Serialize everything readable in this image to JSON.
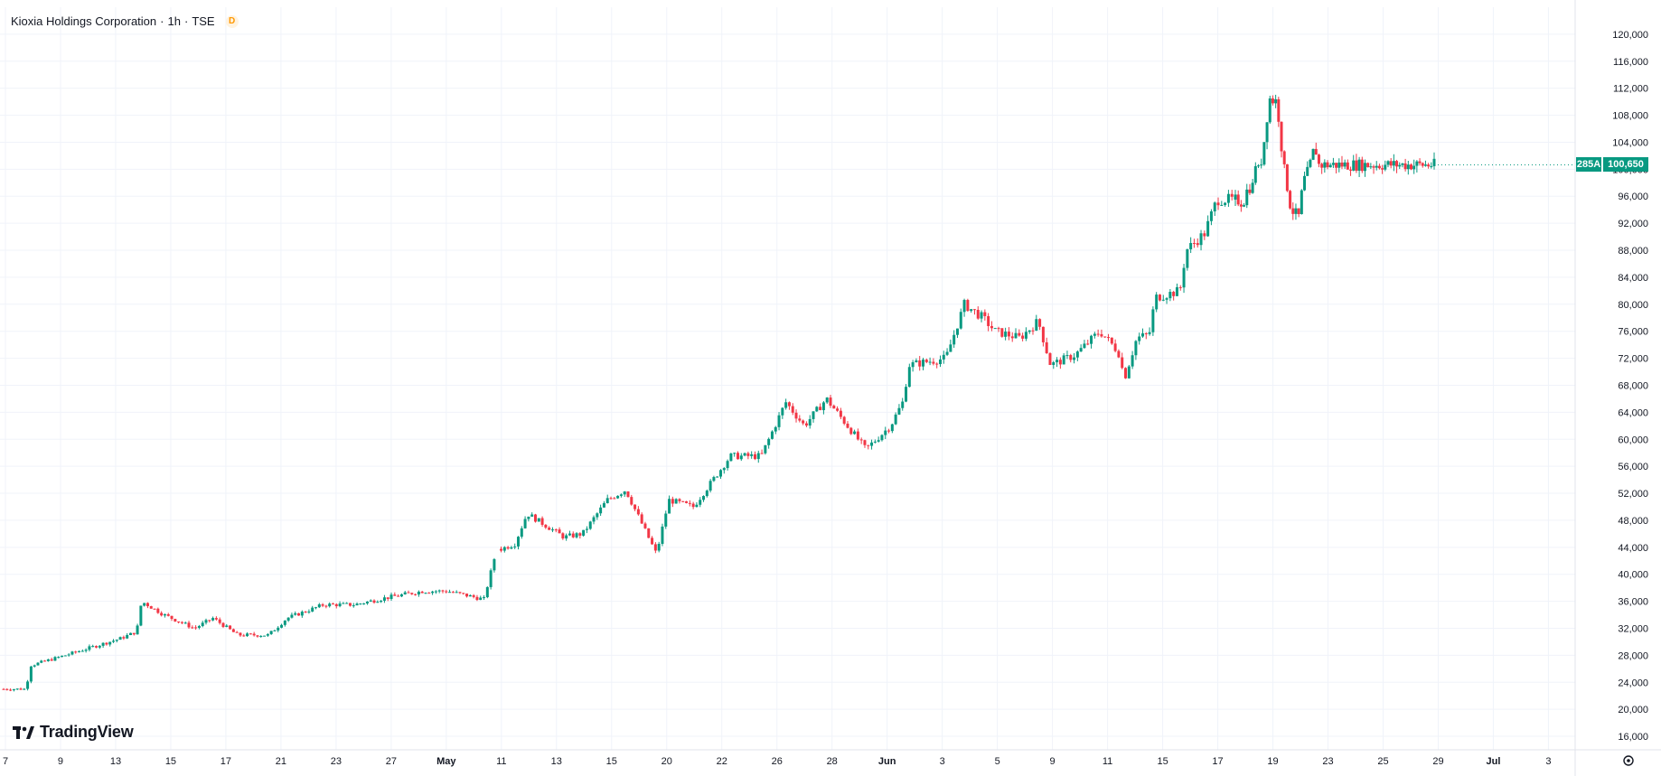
{
  "header": {
    "symbol_name": "Kioxia Holdings Corporation",
    "interval": "1h",
    "exchange": "TSE",
    "sep1": "·",
    "sep2": "·",
    "badge": "D"
  },
  "brand": {
    "name": "TradingView"
  },
  "last_price": {
    "ticker": "285A",
    "value": "100,650"
  },
  "colors": {
    "up": "#089981",
    "down": "#f23645",
    "grid": "#f0f3fa",
    "text": "#131722"
  },
  "chart_data": {
    "type": "candlestick",
    "title": "Kioxia Holdings Corporation · 1h · TSE",
    "ylim": [
      14000,
      124000
    ],
    "y_ticks": [
      "16,000",
      "20,000",
      "24,000",
      "28,000",
      "32,000",
      "36,000",
      "40,000",
      "44,000",
      "48,000",
      "52,000",
      "56,000",
      "60,000",
      "64,000",
      "68,000",
      "72,000",
      "76,000",
      "80,000",
      "84,000",
      "88,000",
      "92,000",
      "96,000",
      "100,000",
      "104,000",
      "108,000",
      "112,000",
      "116,000",
      "120,000"
    ],
    "x_ticks": [
      "7",
      "9",
      "13",
      "15",
      "17",
      "21",
      "23",
      "27",
      "May",
      "11",
      "13",
      "15",
      "20",
      "22",
      "26",
      "28",
      "Jun",
      "3",
      "5",
      "9",
      "11",
      "15",
      "17",
      "19",
      "23",
      "25",
      "29",
      "Jul",
      "3"
    ],
    "x_ticks_bold": [
      "May",
      "Jun",
      "Jul"
    ],
    "grid": true,
    "approx_path": [
      {
        "x": 0,
        "price": 23000
      },
      {
        "x": 0.018,
        "price": 23000
      },
      {
        "x": 0.022,
        "price": 26500
      },
      {
        "x": 0.05,
        "price": 28000
      },
      {
        "x": 0.095,
        "price": 30500
      },
      {
        "x": 0.108,
        "price": 31500
      },
      {
        "x": 0.112,
        "price": 36000
      },
      {
        "x": 0.13,
        "price": 34000
      },
      {
        "x": 0.155,
        "price": 32000
      },
      {
        "x": 0.17,
        "price": 33500
      },
      {
        "x": 0.19,
        "price": 31000
      },
      {
        "x": 0.215,
        "price": 31000
      },
      {
        "x": 0.23,
        "price": 33500
      },
      {
        "x": 0.26,
        "price": 35500
      },
      {
        "x": 0.285,
        "price": 35500
      },
      {
        "x": 0.31,
        "price": 36500
      },
      {
        "x": 0.34,
        "price": 37500
      },
      {
        "x": 0.36,
        "price": 37500
      },
      {
        "x": 0.39,
        "price": 36300
      },
      {
        "x": 0.4,
        "price": 43500
      },
      {
        "x": 0.415,
        "price": 44500
      },
      {
        "x": 0.425,
        "price": 49000
      },
      {
        "x": 0.455,
        "price": 45500
      },
      {
        "x": 0.47,
        "price": 46000
      },
      {
        "x": 0.49,
        "price": 51000
      },
      {
        "x": 0.505,
        "price": 52500
      },
      {
        "x": 0.53,
        "price": 43000
      },
      {
        "x": 0.54,
        "price": 51000
      },
      {
        "x": 0.56,
        "price": 50000
      },
      {
        "x": 0.59,
        "price": 57500
      },
      {
        "x": 0.615,
        "price": 57500
      },
      {
        "x": 0.635,
        "price": 65500
      },
      {
        "x": 0.65,
        "price": 62000
      },
      {
        "x": 0.668,
        "price": 66000
      },
      {
        "x": 0.7,
        "price": 58500
      },
      {
        "x": 0.72,
        "price": 62000
      },
      {
        "x": 0.73,
        "price": 65500
      },
      {
        "x": 0.735,
        "price": 71000
      },
      {
        "x": 0.765,
        "price": 72000
      },
      {
        "x": 0.78,
        "price": 80000
      },
      {
        "x": 0.795,
        "price": 78000
      },
      {
        "x": 0.805,
        "price": 76000
      },
      {
        "x": 0.825,
        "price": 75000
      },
      {
        "x": 0.84,
        "price": 77500
      },
      {
        "x": 0.85,
        "price": 71000
      },
      {
        "x": 0.87,
        "price": 72500
      },
      {
        "x": 0.89,
        "price": 76000
      },
      {
        "x": 0.905,
        "price": 73000
      },
      {
        "x": 0.91,
        "price": 69000
      },
      {
        "x": 0.92,
        "price": 75000
      },
      {
        "x": 0.93,
        "price": 75500
      },
      {
        "x": 0.935,
        "price": 81000
      },
      {
        "x": 0.955,
        "price": 82000
      },
      {
        "x": 0.96,
        "price": 88000
      },
      {
        "x": 0.975,
        "price": 90500
      },
      {
        "x": 0.985,
        "price": 95500
      },
      {
        "x": 1.0,
        "price": 95500
      }
    ],
    "approx_path_2": [
      {
        "x": 0,
        "price": 95500
      },
      {
        "x": 0.04,
        "price": 95000
      },
      {
        "x": 0.065,
        "price": 97500
      },
      {
        "x": 0.085,
        "price": 97000
      },
      {
        "x": 0.1,
        "price": 101000
      },
      {
        "x": 0.12,
        "price": 99500
      },
      {
        "x": 0.14,
        "price": 103000
      },
      {
        "x": 0.17,
        "price": 110500
      },
      {
        "x": 0.21,
        "price": 110000
      },
      {
        "x": 0.24,
        "price": 101000
      },
      {
        "x": 0.28,
        "price": 94000
      },
      {
        "x": 0.32,
        "price": 93000
      },
      {
        "x": 0.34,
        "price": 98000
      },
      {
        "x": 0.37,
        "price": 100000
      },
      {
        "x": 0.4,
        "price": 103500
      },
      {
        "x": 0.42,
        "price": 100650
      }
    ]
  }
}
